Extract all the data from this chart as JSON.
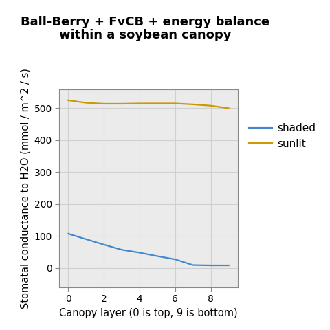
{
  "title_line1": "Ball-Berry + FvCB + energy balance",
  "title_line2": "within a soybean canopy",
  "xlabel": "Canopy layer (0 is top, 9 is bottom)",
  "ylabel": "Stomatal conductance to H2O (mmol / m^2 / s)",
  "x_shaded": [
    0,
    1,
    2,
    3,
    4,
    5,
    6,
    7,
    8,
    9
  ],
  "y_shaded": [
    107,
    90,
    73,
    57,
    48,
    37,
    27,
    9,
    8,
    8
  ],
  "x_sunlit": [
    0,
    1,
    2,
    3,
    4,
    5,
    6,
    7,
    8,
    9
  ],
  "y_sunlit": [
    525,
    517,
    514,
    514,
    515,
    515,
    515,
    512,
    508,
    500
  ],
  "color_shaded": "#4488CC",
  "color_sunlit": "#CC9900",
  "legend_labels": [
    "shaded",
    "sunlit"
  ],
  "xlim": [
    -0.5,
    9.5
  ],
  "ylim": [
    -60,
    560
  ],
  "yticks": [
    0,
    100,
    200,
    300,
    400,
    500
  ],
  "xticks": [
    0,
    2,
    4,
    6,
    8
  ],
  "grid_color": "#D0D0D0",
  "bg_color": "#EBEBEB",
  "fig_bg_color": "#FFFFFF",
  "title_fontsize": 13,
  "label_fontsize": 10.5,
  "tick_fontsize": 10,
  "legend_fontsize": 11,
  "linewidth": 1.6
}
